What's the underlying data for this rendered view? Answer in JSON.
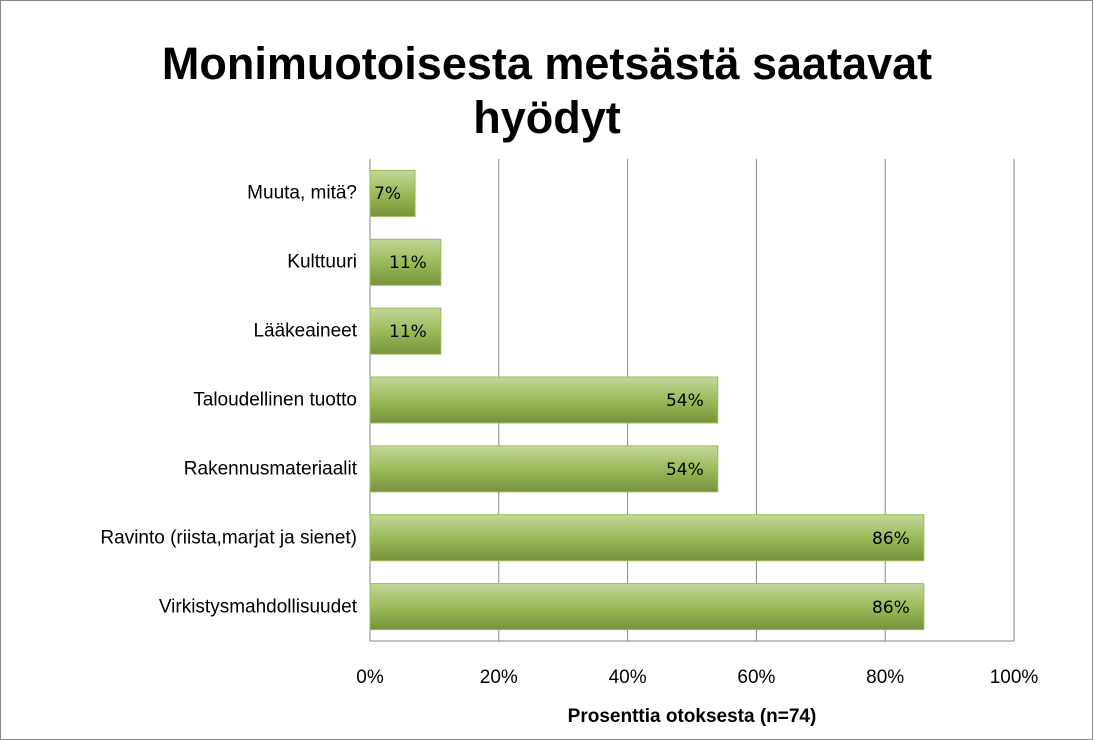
{
  "chart_data": {
    "type": "bar",
    "orientation": "horizontal",
    "title": "Monimuotoisesta metsästä saatavat hyödyt",
    "x_label": "Prosenttia otoksesta (n=74)",
    "categories": [
      "Muuta, mitä?",
      "Kulttuuri",
      "Lääkeaineet",
      "Taloudellinen tuotto",
      "Rakennusmateriaalit",
      "Ravinto (riista,marjat ja sienet)",
      "Virkistysmahdollisuudet"
    ],
    "values": [
      7,
      11,
      11,
      54,
      54,
      86,
      86
    ],
    "value_labels": [
      "7%",
      "11%",
      "11%",
      "54%",
      "54%",
      "86%",
      "86%"
    ],
    "color": "#9bbb59",
    "xlim": [
      0,
      100
    ],
    "xticks": [
      {
        "value": 0,
        "label": "0%"
      },
      {
        "value": 20,
        "label": "20%"
      },
      {
        "value": 40,
        "label": "40%"
      },
      {
        "value": 60,
        "label": "60%"
      },
      {
        "value": 80,
        "label": "80%"
      },
      {
        "value": 100,
        "label": "100%"
      }
    ],
    "grid": true
  }
}
